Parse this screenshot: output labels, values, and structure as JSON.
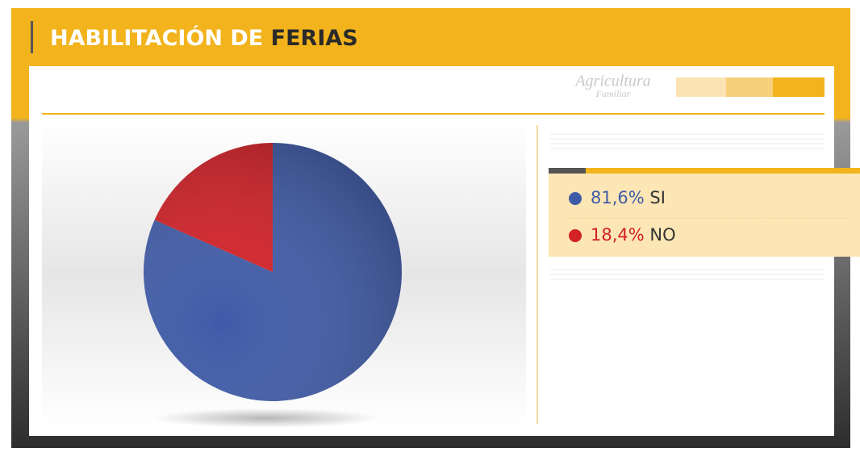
{
  "chart_data": {
    "type": "pie",
    "title": [
      "HABILITACIÓN DE",
      "FERIAS"
    ],
    "logo": [
      "Agricultura",
      "Familiar"
    ],
    "categories": [
      "SI",
      "NO"
    ],
    "values": [
      81.6,
      18.4
    ],
    "value_labels": [
      "81,6%",
      "18,4%"
    ],
    "colors": [
      "#3f5ba8",
      "#d42027"
    ]
  }
}
